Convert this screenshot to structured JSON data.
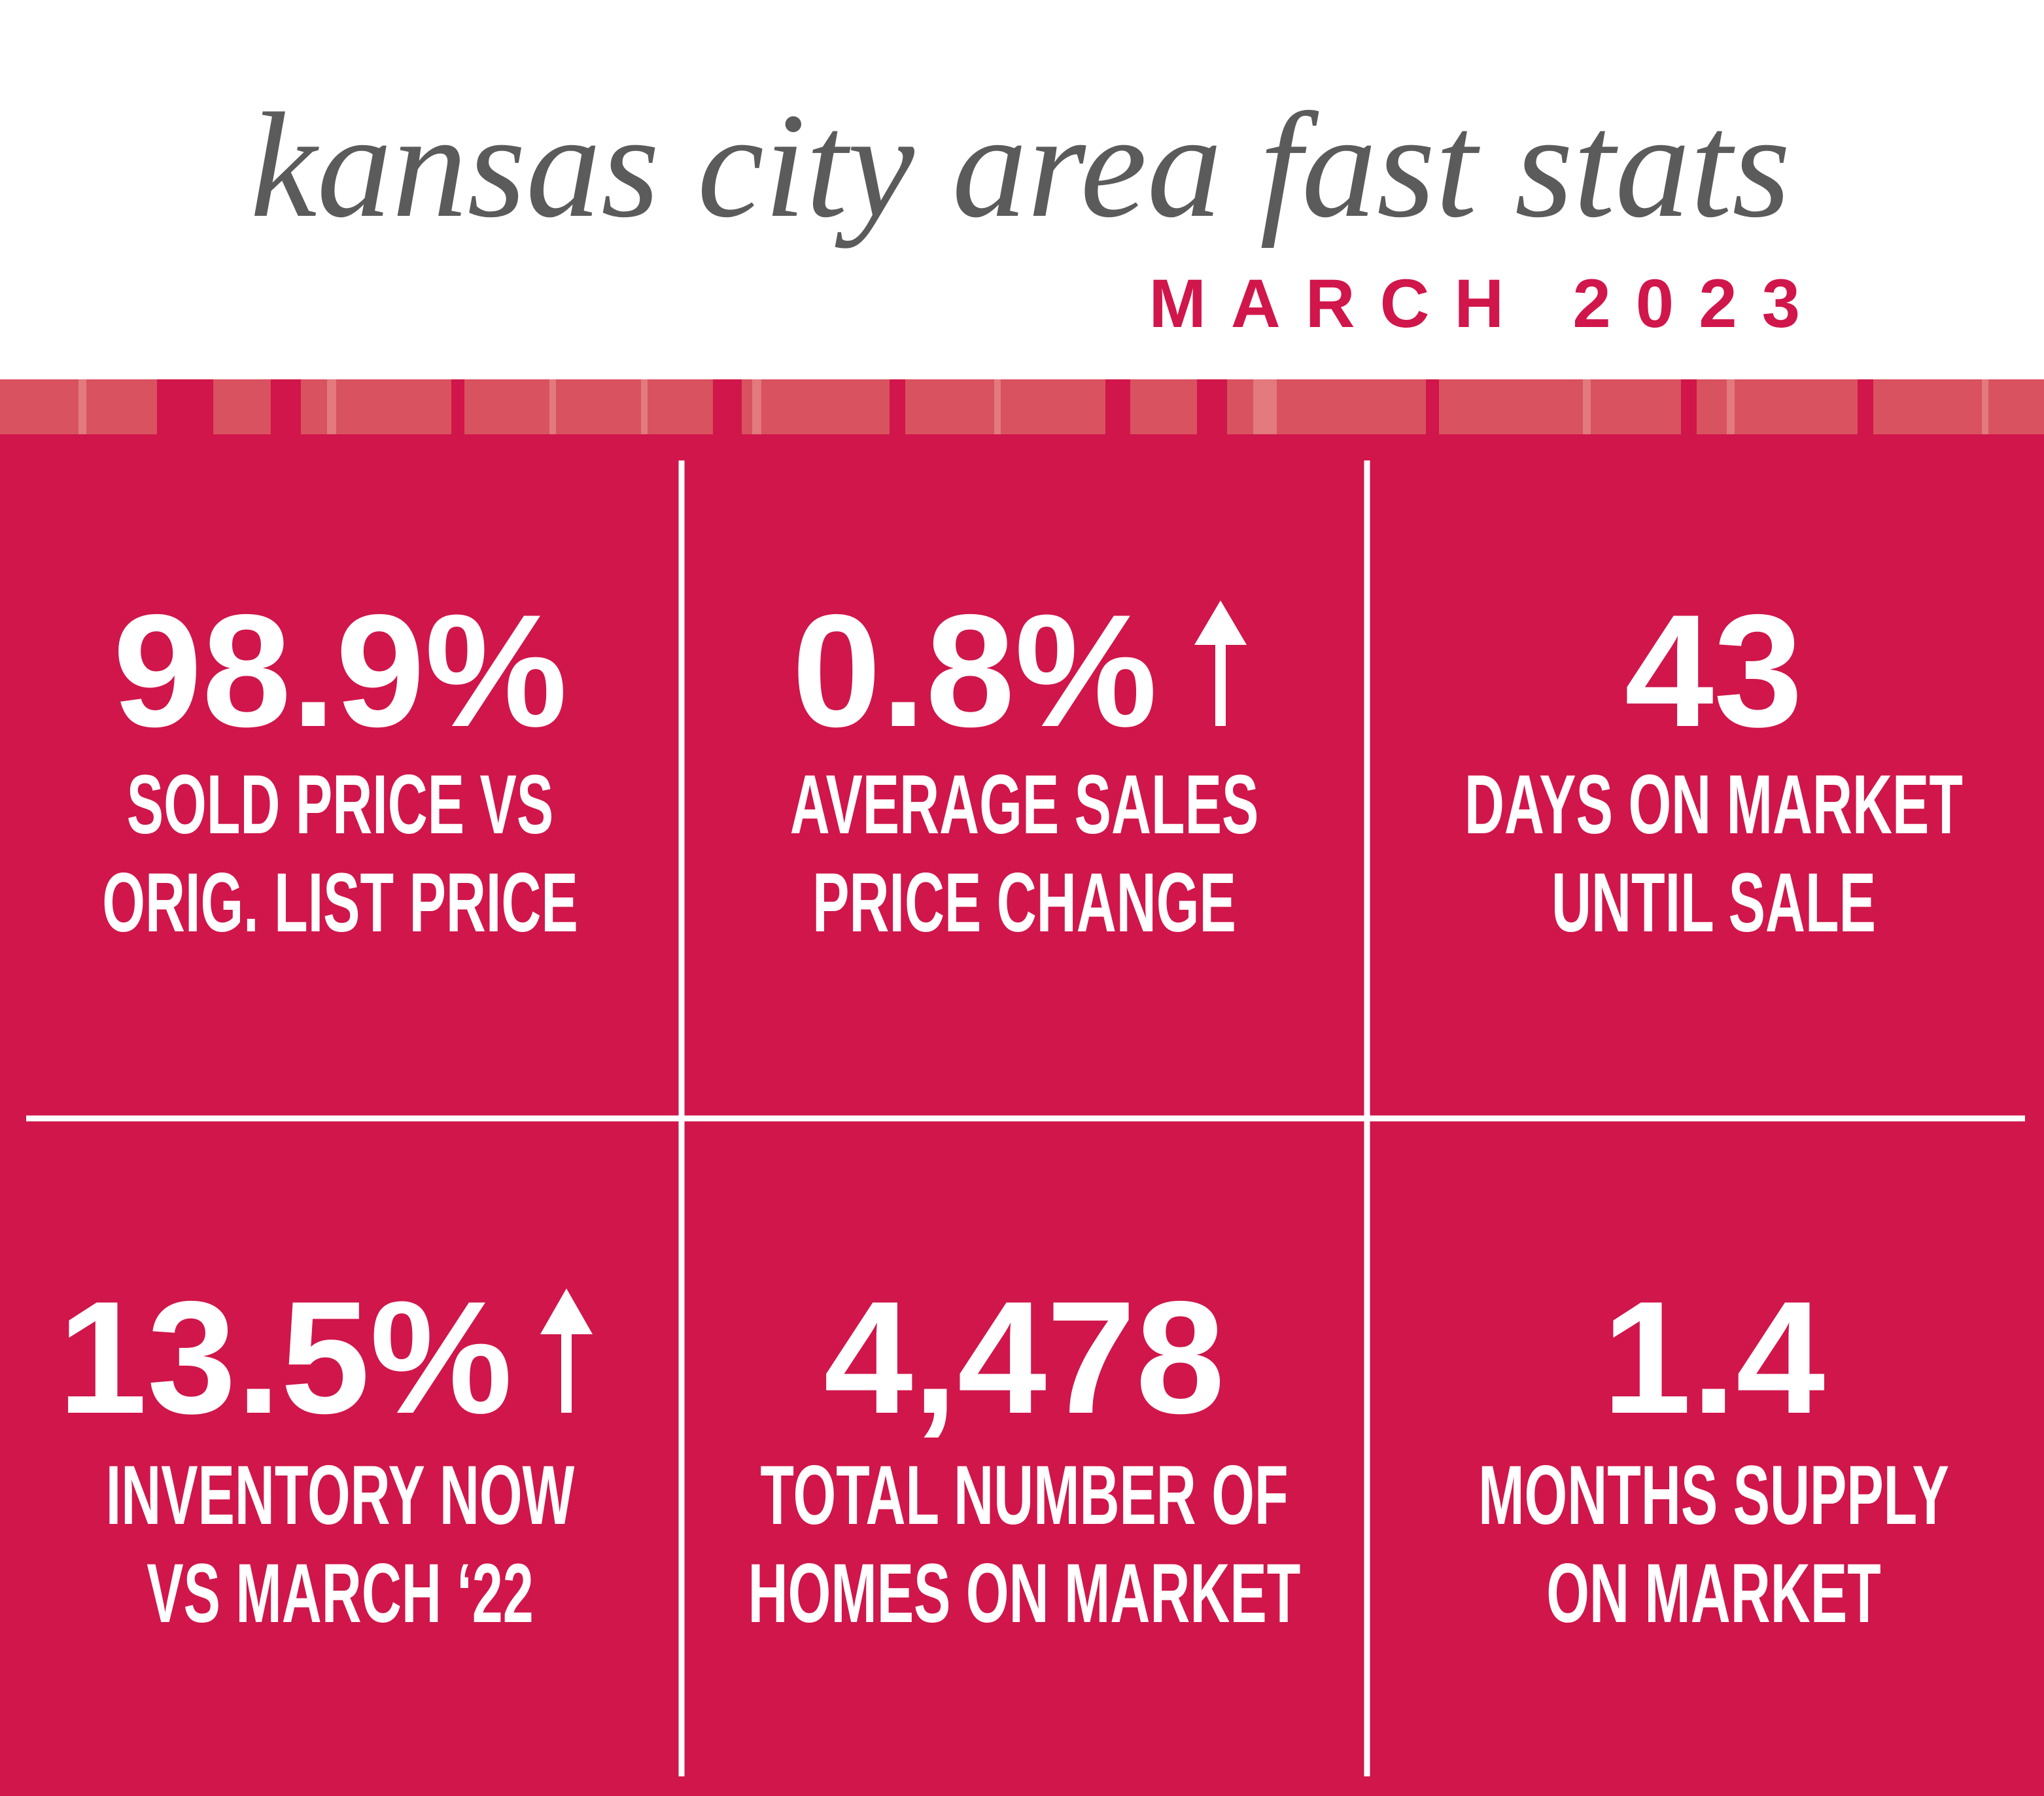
{
  "header": {
    "title": "kansas city area fast stats",
    "subtitle": "MARCH 2023"
  },
  "stats": [
    {
      "value": "98.9%",
      "label": [
        "SOLD PRICE VS",
        "ORIG. LIST PRICE"
      ]
    },
    {
      "value": "0.8%",
      "label": [
        "AVERAGE SALES",
        "PRICE CHANGE"
      ]
    },
    {
      "value": "43",
      "label": [
        "DAYS ON MARKET",
        "UNTIL SALE"
      ]
    },
    {
      "value": "13.5%",
      "label": [
        "INVENTORY NOW",
        "VS MARCH ‘22"
      ]
    },
    {
      "value": "4,478",
      "label": [
        "TOTAL NUMBER OF",
        "HOMES ON MARKET"
      ]
    },
    {
      "value": "1.4",
      "label": [
        "MONTHS SUPPLY",
        "ON MARKET"
      ]
    }
  ]
}
